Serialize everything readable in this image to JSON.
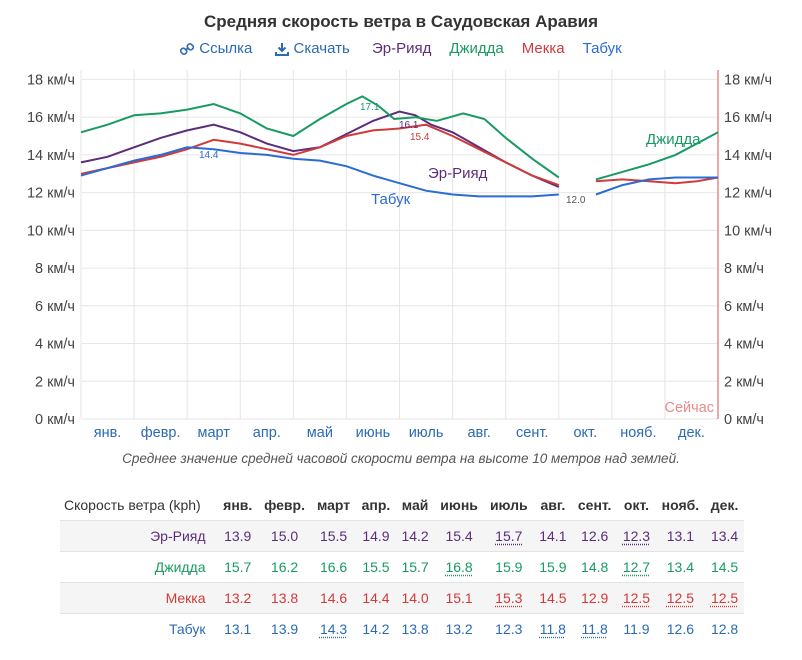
{
  "title": "Средняя скорость ветра в Саудовская Аравия",
  "toolbar": {
    "link_label": "Ссылка",
    "download_label": "Скачать"
  },
  "now_label": "Сейчас",
  "caption": {
    "before": "Среднее значение средней часовой скорости ветра на высоте ",
    "bold": "10 метров",
    "after": " над землей."
  },
  "chart_data": {
    "type": "line",
    "months": [
      "янв.",
      "февр.",
      "март",
      "апр.",
      "май",
      "июнь",
      "июль",
      "авг.",
      "сент.",
      "окт.",
      "нояб.",
      "дек."
    ],
    "y_ticks": [
      "0 км/ч",
      "2 км/ч",
      "4 км/ч",
      "6 км/ч",
      "8 км/ч",
      "10 км/ч",
      "12 км/ч",
      "14 км/ч",
      "16 км/ч",
      "18 км/ч"
    ],
    "ylim": [
      0,
      18.5
    ],
    "grid": true,
    "series": [
      {
        "name": "Эр-Рияд",
        "color": "#5b2d7c",
        "points": [
          [
            0,
            13.6
          ],
          [
            0.5,
            13.9
          ],
          [
            1.0,
            14.4
          ],
          [
            1.5,
            14.9
          ],
          [
            2.0,
            15.3
          ],
          [
            2.5,
            15.6
          ],
          [
            3.0,
            15.2
          ],
          [
            3.5,
            14.6
          ],
          [
            4.0,
            14.2
          ],
          [
            4.5,
            14.4
          ],
          [
            5.0,
            15.1
          ],
          [
            5.5,
            15.8
          ],
          [
            6.0,
            16.3
          ],
          [
            6.3,
            16.1
          ],
          [
            6.6,
            15.6
          ],
          [
            7.0,
            15.2
          ],
          [
            7.5,
            14.4
          ],
          [
            8.0,
            13.6
          ],
          [
            8.5,
            12.9
          ],
          [
            9.0,
            12.3
          ]
        ],
        "label_text": "Эр-Рияд",
        "peak": "16.1"
      },
      {
        "name": "Джидда",
        "color": "#1a9a63",
        "points": [
          [
            0,
            15.2
          ],
          [
            0.5,
            15.6
          ],
          [
            1.0,
            16.1
          ],
          [
            1.5,
            16.2
          ],
          [
            2.0,
            16.4
          ],
          [
            2.5,
            16.7
          ],
          [
            3.0,
            16.2
          ],
          [
            3.5,
            15.4
          ],
          [
            4.0,
            15.0
          ],
          [
            4.5,
            15.9
          ],
          [
            5.0,
            16.7
          ],
          [
            5.3,
            17.1
          ],
          [
            5.6,
            16.6
          ],
          [
            5.9,
            15.9
          ],
          [
            6.3,
            16.0
          ],
          [
            6.7,
            15.8
          ],
          [
            7.2,
            16.2
          ],
          [
            7.6,
            15.9
          ],
          [
            8.0,
            14.9
          ],
          [
            8.5,
            13.8
          ],
          [
            9.0,
            12.8
          ]
        ],
        "points2": [
          [
            9.7,
            12.7
          ],
          [
            10.2,
            13.1
          ],
          [
            10.7,
            13.5
          ],
          [
            11.2,
            14.0
          ],
          [
            11.6,
            14.6
          ],
          [
            12.0,
            15.2
          ]
        ],
        "label_text": "Джидда",
        "peak": "17.1"
      },
      {
        "name": "Мекка",
        "color": "#d03a3a",
        "points": [
          [
            0,
            13.0
          ],
          [
            0.5,
            13.3
          ],
          [
            1.0,
            13.6
          ],
          [
            1.5,
            13.9
          ],
          [
            2.0,
            14.3
          ],
          [
            2.5,
            14.8
          ],
          [
            3.0,
            14.6
          ],
          [
            3.5,
            14.3
          ],
          [
            4.0,
            14.0
          ],
          [
            4.5,
            14.4
          ],
          [
            5.0,
            15.0
          ],
          [
            5.5,
            15.3
          ],
          [
            6.0,
            15.4
          ],
          [
            6.5,
            15.6
          ],
          [
            7.0,
            15.0
          ],
          [
            7.5,
            14.3
          ],
          [
            8.0,
            13.6
          ],
          [
            8.5,
            12.9
          ],
          [
            9.0,
            12.4
          ]
        ],
        "points2": [
          [
            9.7,
            12.6
          ],
          [
            10.2,
            12.7
          ],
          [
            10.7,
            12.6
          ],
          [
            11.2,
            12.5
          ],
          [
            11.6,
            12.6
          ],
          [
            12.0,
            12.8
          ]
        ],
        "peak": "15.4"
      },
      {
        "name": "Табук",
        "color": "#2a6bd6",
        "points": [
          [
            0,
            12.9
          ],
          [
            0.5,
            13.3
          ],
          [
            1.0,
            13.7
          ],
          [
            1.5,
            14.0
          ],
          [
            2.0,
            14.4
          ],
          [
            2.5,
            14.3
          ],
          [
            3.0,
            14.1
          ],
          [
            3.5,
            14.0
          ],
          [
            4.0,
            13.8
          ],
          [
            4.5,
            13.7
          ],
          [
            5.0,
            13.4
          ],
          [
            5.5,
            12.9
          ],
          [
            6.0,
            12.5
          ],
          [
            6.5,
            12.1
          ],
          [
            7.0,
            11.9
          ],
          [
            7.5,
            11.8
          ],
          [
            8.0,
            11.8
          ],
          [
            8.5,
            11.8
          ],
          [
            9.0,
            11.9
          ]
        ],
        "points2": [
          [
            9.7,
            11.9
          ],
          [
            10.2,
            12.4
          ],
          [
            10.7,
            12.7
          ],
          [
            11.2,
            12.8
          ],
          [
            11.6,
            12.8
          ],
          [
            12.0,
            12.8
          ]
        ],
        "label_text": "Табук",
        "peak": "14.4",
        "low": "12.0"
      }
    ]
  },
  "table": {
    "header_label": "Скорость ветра (kph)",
    "months": [
      "янв.",
      "февр.",
      "март",
      "апр.",
      "май",
      "июнь",
      "июль",
      "авг.",
      "сент.",
      "окт.",
      "нояб.",
      "дек."
    ],
    "rows": [
      {
        "name": "Эр-Рияд",
        "color": "#5b2d7c",
        "values": [
          "13.9",
          "15.0",
          "15.5",
          "14.9",
          "14.2",
          "15.4",
          "15.7",
          "14.1",
          "12.6",
          "12.3",
          "13.1",
          "13.4"
        ],
        "underlined": [
          6,
          9
        ]
      },
      {
        "name": "Джидда",
        "color": "#1a9a63",
        "values": [
          "15.7",
          "16.2",
          "16.6",
          "15.5",
          "15.7",
          "16.8",
          "15.9",
          "15.9",
          "14.8",
          "12.7",
          "13.4",
          "14.5"
        ],
        "underlined": [
          5,
          9
        ]
      },
      {
        "name": "Мекка",
        "color": "#d03a3a",
        "values": [
          "13.2",
          "13.8",
          "14.6",
          "14.4",
          "14.0",
          "15.1",
          "15.3",
          "14.5",
          "12.9",
          "12.5",
          "12.5",
          "12.5"
        ],
        "underlined": [
          6,
          9,
          10,
          11
        ]
      },
      {
        "name": "Табук",
        "color": "#2a6bb3",
        "values": [
          "13.1",
          "13.9",
          "14.3",
          "14.2",
          "13.8",
          "13.2",
          "12.3",
          "11.8",
          "11.8",
          "11.9",
          "12.6",
          "12.8"
        ],
        "underlined": [
          2,
          7,
          8
        ]
      }
    ]
  }
}
